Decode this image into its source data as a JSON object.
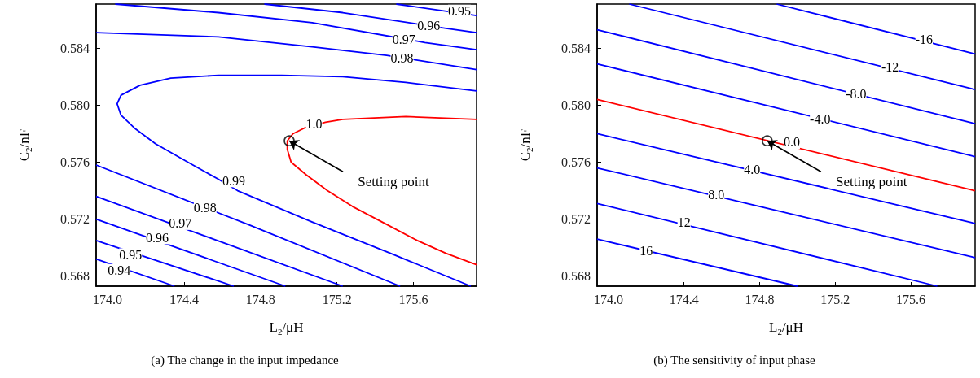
{
  "chart_data": [
    {
      "type": "line",
      "title": "(a) The change in the input impedance",
      "xlabel": "L$_{2}$/μH",
      "ylabel": "C$_{2}$/nF",
      "xlim": [
        173.94,
        175.93
      ],
      "ylim": [
        0.5673,
        0.5871
      ],
      "xticks": [
        {
          "value": 174,
          "label": "174.0"
        },
        174.4,
        174.8,
        175.2,
        175.6
      ],
      "yticks": [
        0.568,
        0.572,
        0.576,
        {
          "value": 0.58,
          "label": "0.580"
        },
        0.584
      ],
      "series": [
        {
          "color": "#ff0000",
          "x": [
            175.93,
            175.56,
            175.23,
            175.14,
            175.03,
            174.97,
            174.94,
            174.94,
            174.96,
            175.04,
            175.15,
            175.28,
            175.45,
            175.62,
            175.77,
            175.93
          ],
          "values": [
            0.579,
            0.5792,
            0.579,
            0.5788,
            0.5784,
            0.578,
            0.5775,
            0.5769,
            0.576,
            0.5751,
            0.574,
            0.5729,
            0.5717,
            0.5705,
            0.5696,
            0.5688
          ]
        },
        {
          "color": "#0000ff",
          "x": [
            175.93,
            175.56,
            175.23,
            174.91,
            174.58,
            174.33,
            174.17,
            174.07,
            174.05,
            174.07,
            174.14,
            174.25,
            174.42,
            174.58,
            174.68,
            175.07,
            175.48,
            175.9
          ],
          "values": [
            0.581,
            0.5816,
            0.582,
            0.5821,
            0.5821,
            0.5819,
            0.5814,
            0.5807,
            0.5801,
            0.5793,
            0.5784,
            0.5773,
            0.576,
            0.5748,
            0.574,
            0.5718,
            0.5696,
            0.5673
          ]
        },
        {
          "color": "#0000ff",
          "x": [
            173.94,
            174.58,
            175.07,
            175.46,
            175.93
          ],
          "values": [
            0.5851,
            0.5848,
            0.5841,
            0.5835,
            0.5825
          ]
        },
        {
          "color": "#0000ff",
          "x": [
            174.04,
            174.58,
            175.07,
            175.66,
            175.93
          ],
          "values": [
            0.5871,
            0.5865,
            0.5858,
            0.5844,
            0.5839
          ]
        },
        {
          "color": "#0000ff",
          "x": [
            174.82,
            175.23,
            175.77,
            175.93
          ],
          "values": [
            0.5871,
            0.5865,
            0.5854,
            0.5851
          ]
        },
        {
          "color": "#0000ff",
          "x": [
            175.51,
            175.93
          ],
          "values": [
            0.5871,
            0.5863
          ]
        },
        {
          "color": "#0000ff",
          "x": [
            173.94,
            174.74,
            175.53
          ],
          "values": [
            0.5758,
            0.5716,
            0.5673
          ]
        },
        {
          "color": "#0000ff",
          "x": [
            173.94,
            175.23
          ],
          "values": [
            0.5736,
            0.5673
          ]
        },
        {
          "color": "#0000ff",
          "x": [
            173.94,
            174.93
          ],
          "values": [
            0.572,
            0.5673
          ]
        },
        {
          "color": "#0000ff",
          "x": [
            173.94,
            174.66
          ],
          "values": [
            0.5705,
            0.5673
          ]
        },
        {
          "color": "#0000ff",
          "x": [
            173.94,
            174.35
          ],
          "values": [
            0.5692,
            0.5673
          ]
        },
        {
          "type": "scatter",
          "marker": "circle",
          "color": "#000000",
          "x": [
            174.95
          ],
          "values": [
            0.5775
          ]
        }
      ],
      "annotations": [
        {
          "text": "1.0",
          "x": 175.08,
          "y": 0.5787
        },
        {
          "text": "0.99",
          "x": 174.66,
          "y": 0.5747
        },
        {
          "text": "0.98",
          "x": 174.51,
          "y": 0.5728
        },
        {
          "text": "0.97",
          "x": 174.38,
          "y": 0.5717
        },
        {
          "text": "0.96",
          "x": 174.26,
          "y": 0.5707
        },
        {
          "text": "0.95",
          "x": 174.12,
          "y": 0.5695
        },
        {
          "text": "0.94",
          "x": 174.06,
          "y": 0.5684
        },
        {
          "text": "0.98",
          "x": 175.54,
          "y": 0.5833
        },
        {
          "text": "0.97",
          "x": 175.55,
          "y": 0.5846
        },
        {
          "text": "0.96",
          "x": 175.68,
          "y": 0.5856
        },
        {
          "text": "0.95",
          "x": 175.84,
          "y": 0.5866
        },
        {
          "text": "Setting point",
          "x": 174.95,
          "y": 0.5775
        }
      ]
    },
    {
      "type": "line",
      "title": "(b) The sensitivity of input phase",
      "xlabel": "L$_{2}$/μH",
      "ylabel": "C$_{2}$/nF",
      "xlim": [
        173.94,
        175.94
      ],
      "ylim": [
        0.5673,
        0.5871
      ],
      "xticks": [
        {
          "value": 174,
          "label": "174.0"
        },
        174.4,
        174.8,
        175.2,
        175.6
      ],
      "yticks": [
        0.568,
        0.572,
        0.576,
        {
          "value": 0.58,
          "label": "0.580"
        },
        0.584
      ],
      "series": [
        {
          "color": "#0000ff",
          "x": [
            174.89,
            175.94
          ],
          "values": [
            0.5871,
            0.5836
          ]
        },
        {
          "color": "#0000ff",
          "x": [
            174.11,
            175.94
          ],
          "values": [
            0.5871,
            0.5811
          ]
        },
        {
          "color": "#0000ff",
          "x": [
            173.94,
            175.94
          ],
          "values": [
            0.5853,
            0.5787
          ]
        },
        {
          "color": "#0000ff",
          "x": [
            173.94,
            175.94
          ],
          "values": [
            0.5829,
            0.5764
          ]
        },
        {
          "color": "#ff0000",
          "x": [
            173.94,
            175.94
          ],
          "values": [
            0.5804,
            0.574
          ]
        },
        {
          "color": "#0000ff",
          "x": [
            173.94,
            175.94
          ],
          "values": [
            0.578,
            0.5717
          ]
        },
        {
          "color": "#0000ff",
          "x": [
            173.94,
            175.94
          ],
          "values": [
            0.5756,
            0.5693
          ]
        },
        {
          "color": "#0000ff",
          "x": [
            173.94,
            175.74
          ],
          "values": [
            0.5731,
            0.5673
          ]
        },
        {
          "color": "#0000ff",
          "x": [
            173.94,
            175.0
          ],
          "values": [
            0.5706,
            0.5673
          ]
        },
        {
          "type": "scatter",
          "marker": "circle",
          "color": "#000000",
          "x": [
            174.84
          ],
          "values": [
            0.5775
          ]
        }
      ],
      "annotations": [
        {
          "text": "-16",
          "x": 175.67,
          "y": 0.5846
        },
        {
          "text": "-12",
          "x": 175.49,
          "y": 0.5827
        },
        {
          "text": "-8.0",
          "x": 175.31,
          "y": 0.5808
        },
        {
          "text": "-4.0",
          "x": 175.12,
          "y": 0.579
        },
        {
          "text": "0.0",
          "x": 174.97,
          "y": 0.5774
        },
        {
          "text": "4.0",
          "x": 174.76,
          "y": 0.5755
        },
        {
          "text": "8.0",
          "x": 174.57,
          "y": 0.5737
        },
        {
          "text": "12",
          "x": 174.4,
          "y": 0.5718
        },
        {
          "text": "16",
          "x": 174.2,
          "y": 0.5698
        },
        {
          "text": "Setting point",
          "x": 174.84,
          "y": 0.5775
        }
      ]
    }
  ]
}
